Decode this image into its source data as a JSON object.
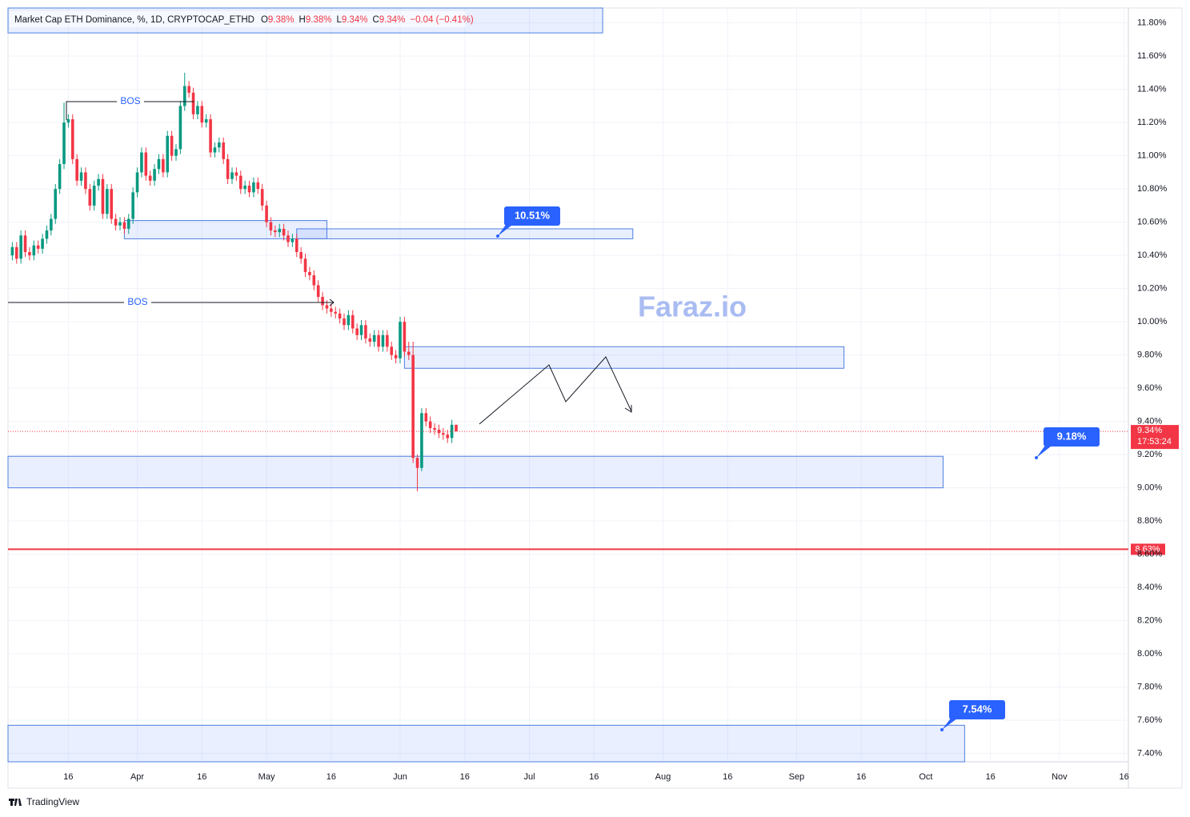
{
  "chart_data": {
    "type": "candlestick",
    "header": {
      "symbol": "Market Cap ETH Dominance, %, 1D, CRYPTOCAP_ETHD",
      "ohlc": [
        {
          "key": "O",
          "value": "9.38%"
        },
        {
          "key": "H",
          "value": "9.38%"
        },
        {
          "key": "L",
          "value": "9.34%"
        },
        {
          "key": "C",
          "value": "9.34%"
        }
      ],
      "change": "−0.04 (−0.41%)"
    },
    "up_color": "#089981",
    "down_color": "#f23645",
    "x": [
      "03-03",
      "03-04",
      "03-05",
      "03-06",
      "03-07",
      "03-08",
      "03-09",
      "03-10",
      "03-11",
      "03-12",
      "03-13",
      "03-14",
      "03-15",
      "03-16",
      "03-17",
      "03-18",
      "03-19",
      "03-20",
      "03-21",
      "03-22",
      "03-23",
      "03-24",
      "03-25",
      "03-26",
      "03-27",
      "03-28",
      "03-29",
      "03-30",
      "03-31",
      "04-01",
      "04-02",
      "04-03",
      "04-04",
      "04-05",
      "04-06",
      "04-07",
      "04-08",
      "04-09",
      "04-10",
      "04-11",
      "04-12",
      "04-13",
      "04-14",
      "04-15",
      "04-16",
      "04-17",
      "04-18",
      "04-19",
      "04-20",
      "04-21",
      "04-22",
      "04-23",
      "04-24",
      "04-25",
      "04-26",
      "04-27",
      "04-28",
      "04-29",
      "04-30",
      "05-01",
      "05-02",
      "05-03",
      "05-04",
      "05-05",
      "05-06",
      "05-07",
      "05-08",
      "05-09",
      "05-10",
      "05-11",
      "05-12",
      "05-13",
      "05-14",
      "05-15",
      "05-16",
      "05-17",
      "05-18",
      "05-19",
      "05-20",
      "05-21",
      "05-22",
      "05-23",
      "05-24",
      "05-25",
      "05-26",
      "05-27",
      "05-28",
      "05-29",
      "05-30",
      "05-31",
      "06-01",
      "06-02",
      "06-03",
      "06-04",
      "06-05",
      "06-06",
      "06-07",
      "06-08",
      "06-09",
      "06-10",
      "06-11",
      "06-12",
      "06-13",
      "06-14"
    ],
    "open": [
      10.4,
      10.45,
      10.38,
      10.52,
      10.42,
      10.4,
      10.46,
      10.44,
      10.5,
      10.55,
      10.62,
      10.8,
      10.95,
      11.2,
      11.22,
      10.98,
      10.85,
      10.9,
      10.8,
      10.7,
      10.82,
      10.86,
      10.65,
      10.8,
      10.62,
      10.58,
      10.6,
      10.56,
      10.62,
      10.78,
      10.9,
      11.02,
      10.88,
      10.85,
      10.92,
      10.98,
      10.9,
      11.12,
      11.0,
      11.04,
      11.3,
      11.42,
      11.38,
      11.25,
      11.3,
      11.2,
      11.22,
      11.02,
      11.05,
      11.08,
      10.98,
      10.86,
      10.9,
      10.88,
      10.8,
      10.82,
      10.78,
      10.84,
      10.8,
      10.7,
      10.6,
      10.55,
      10.54,
      10.56,
      10.52,
      10.48,
      10.5,
      10.42,
      10.38,
      10.3,
      10.28,
      10.22,
      10.15,
      10.1,
      10.08,
      10.06,
      10.05,
      10.02,
      9.98,
      10.04,
      9.96,
      9.92,
      9.98,
      9.9,
      9.88,
      9.92,
      9.85,
      9.92,
      9.85,
      9.8,
      9.78,
      10.0,
      9.82,
      9.8,
      9.18,
      9.12,
      9.45,
      9.4,
      9.36,
      9.35,
      9.33,
      9.32,
      9.3,
      9.38
    ],
    "high": [
      10.48,
      10.48,
      10.55,
      10.55,
      10.45,
      10.49,
      10.49,
      10.53,
      10.58,
      10.65,
      10.83,
      10.98,
      11.32,
      11.25,
      11.25,
      11.01,
      10.93,
      10.93,
      10.83,
      10.85,
      10.89,
      10.89,
      10.83,
      10.83,
      10.65,
      10.63,
      10.63,
      10.65,
      10.81,
      10.93,
      11.05,
      11.05,
      10.91,
      10.95,
      11.01,
      11.01,
      11.15,
      11.15,
      11.07,
      11.33,
      11.5,
      11.45,
      11.41,
      11.33,
      11.33,
      11.25,
      11.25,
      11.08,
      11.11,
      11.11,
      11.01,
      10.93,
      10.93,
      10.91,
      10.85,
      10.85,
      10.87,
      10.87,
      10.83,
      10.73,
      10.63,
      10.58,
      10.59,
      10.59,
      10.55,
      10.53,
      10.53,
      10.45,
      10.41,
      10.33,
      10.31,
      10.25,
      10.18,
      10.13,
      10.11,
      10.09,
      10.08,
      10.05,
      10.07,
      10.07,
      9.99,
      10.01,
      10.01,
      9.93,
      9.95,
      9.95,
      9.95,
      9.95,
      9.88,
      9.83,
      10.03,
      10.03,
      9.88,
      9.88,
      9.2,
      9.48,
      9.48,
      9.43,
      9.39,
      9.38,
      9.36,
      9.35,
      9.41,
      9.38
    ],
    "low": [
      10.37,
      10.35,
      10.35,
      10.39,
      10.37,
      10.37,
      10.41,
      10.41,
      10.47,
      10.52,
      10.59,
      10.77,
      10.92,
      11.17,
      10.95,
      10.82,
      10.82,
      10.77,
      10.67,
      10.67,
      10.79,
      10.62,
      10.62,
      10.59,
      10.55,
      10.55,
      10.53,
      10.53,
      10.59,
      10.75,
      10.87,
      10.85,
      10.82,
      10.82,
      10.89,
      10.87,
      10.87,
      10.97,
      10.97,
      11.01,
      11.27,
      11.35,
      11.22,
      11.22,
      11.17,
      11.17,
      10.99,
      10.99,
      11.02,
      10.95,
      10.83,
      10.83,
      10.85,
      10.77,
      10.77,
      10.75,
      10.75,
      10.77,
      10.67,
      10.57,
      10.52,
      10.51,
      10.51,
      10.49,
      10.45,
      10.45,
      10.39,
      10.35,
      10.27,
      10.25,
      10.19,
      10.12,
      10.07,
      10.05,
      10.03,
      10.02,
      9.99,
      9.95,
      9.95,
      9.93,
      9.89,
      9.89,
      9.87,
      9.85,
      9.85,
      9.82,
      9.82,
      9.82,
      9.77,
      9.75,
      9.75,
      9.79,
      9.77,
      9.15,
      8.98,
      9.1,
      9.37,
      9.33,
      9.32,
      9.3,
      9.29,
      9.27,
      9.27,
      9.34
    ],
    "close": [
      10.45,
      10.38,
      10.52,
      10.42,
      10.4,
      10.46,
      10.44,
      10.5,
      10.55,
      10.62,
      10.8,
      10.95,
      11.2,
      11.22,
      10.98,
      10.85,
      10.9,
      10.8,
      10.7,
      10.82,
      10.86,
      10.65,
      10.8,
      10.62,
      10.58,
      10.6,
      10.56,
      10.62,
      10.78,
      10.9,
      11.02,
      10.88,
      10.85,
      10.92,
      10.98,
      10.9,
      11.12,
      11.0,
      11.04,
      11.3,
      11.42,
      11.38,
      11.25,
      11.3,
      11.2,
      11.22,
      11.02,
      11.05,
      11.08,
      10.98,
      10.86,
      10.9,
      10.88,
      10.8,
      10.82,
      10.78,
      10.84,
      10.8,
      10.7,
      10.6,
      10.55,
      10.54,
      10.56,
      10.52,
      10.48,
      10.5,
      10.42,
      10.38,
      10.3,
      10.28,
      10.22,
      10.15,
      10.1,
      10.08,
      10.06,
      10.05,
      10.02,
      9.98,
      10.04,
      9.96,
      9.92,
      9.98,
      9.9,
      9.88,
      9.92,
      9.85,
      9.92,
      9.85,
      9.8,
      9.78,
      10.0,
      9.82,
      9.8,
      9.18,
      9.12,
      9.45,
      9.4,
      9.36,
      9.35,
      9.33,
      9.32,
      9.3,
      9.38,
      9.34
    ],
    "xlim": [
      "03-02",
      "11-17"
    ],
    "xticks": [
      {
        "value": "03-16",
        "label": "16"
      },
      {
        "value": "04-01",
        "label": "Apr"
      },
      {
        "value": "04-16",
        "label": "16"
      },
      {
        "value": "05-01",
        "label": "May"
      },
      {
        "value": "05-16",
        "label": "16"
      },
      {
        "value": "06-01",
        "label": "Jun"
      },
      {
        "value": "06-16",
        "label": "16"
      },
      {
        "value": "07-01",
        "label": "Jul"
      },
      {
        "value": "07-16",
        "label": "16"
      },
      {
        "value": "08-01",
        "label": "Aug"
      },
      {
        "value": "08-16",
        "label": "16"
      },
      {
        "value": "09-01",
        "label": "Sep"
      },
      {
        "value": "09-16",
        "label": "16"
      },
      {
        "value": "10-01",
        "label": "Oct"
      },
      {
        "value": "10-16",
        "label": "16"
      },
      {
        "value": "11-01",
        "label": "Nov"
      },
      {
        "value": "11-16",
        "label": "16"
      }
    ],
    "ylim": [
      7.35,
      11.89
    ],
    "yticks": [
      {
        "value": 11.8,
        "label": "11.80%"
      },
      {
        "value": 11.6,
        "label": "11.60%"
      },
      {
        "value": 11.4,
        "label": "11.40%"
      },
      {
        "value": 11.2,
        "label": "11.20%"
      },
      {
        "value": 11.0,
        "label": "11.00%"
      },
      {
        "value": 10.8,
        "label": "10.80%"
      },
      {
        "value": 10.6,
        "label": "10.60%"
      },
      {
        "value": 10.4,
        "label": "10.40%"
      },
      {
        "value": 10.2,
        "label": "10.20%"
      },
      {
        "value": 10.0,
        "label": "10.00%"
      },
      {
        "value": 9.8,
        "label": "9.80%"
      },
      {
        "value": 9.6,
        "label": "9.60%"
      },
      {
        "value": 9.4,
        "label": "9.40%"
      },
      {
        "value": 9.2,
        "label": "9.20%"
      },
      {
        "value": 9.0,
        "label": "9.00%"
      },
      {
        "value": 8.8,
        "label": "8.80%"
      },
      {
        "value": 8.6,
        "label": "8.60%"
      },
      {
        "value": 8.4,
        "label": "8.40%"
      },
      {
        "value": 8.2,
        "label": "8.20%"
      },
      {
        "value": 8.0,
        "label": "8.00%"
      },
      {
        "value": 7.8,
        "label": "7.80%"
      },
      {
        "value": 7.6,
        "label": "7.60%"
      },
      {
        "value": 7.4,
        "label": "7.40%"
      }
    ],
    "grid": true,
    "zones": [
      {
        "from": "03-02",
        "to": "07-18",
        "top": 11.89,
        "bottom": 11.74
      },
      {
        "from": "03-29",
        "to": "05-15",
        "top": 10.61,
        "bottom": 10.5
      },
      {
        "from": "05-08",
        "to": "07-25",
        "top": 10.56,
        "bottom": 10.5
      },
      {
        "from": "06-02",
        "to": "09-12",
        "top": 9.85,
        "bottom": 9.72
      },
      {
        "from": "03-02",
        "to": "10-05",
        "top": 9.19,
        "bottom": 9.0
      },
      {
        "from": "03-02",
        "to": "10-10",
        "top": 7.57,
        "bottom": 7.35
      }
    ],
    "callouts": [
      "10.51%",
      "9.18%",
      "7.54%"
    ],
    "bos": [
      "BOS",
      "BOS"
    ],
    "watermark": "Faraz.io",
    "last_price": {
      "value": 9.34,
      "label": "9.34%",
      "countdown": "17:53:24"
    },
    "level_line": {
      "value": 8.63,
      "label": "8.63%",
      "color": "#f23645"
    }
  },
  "footer": "TradingView"
}
